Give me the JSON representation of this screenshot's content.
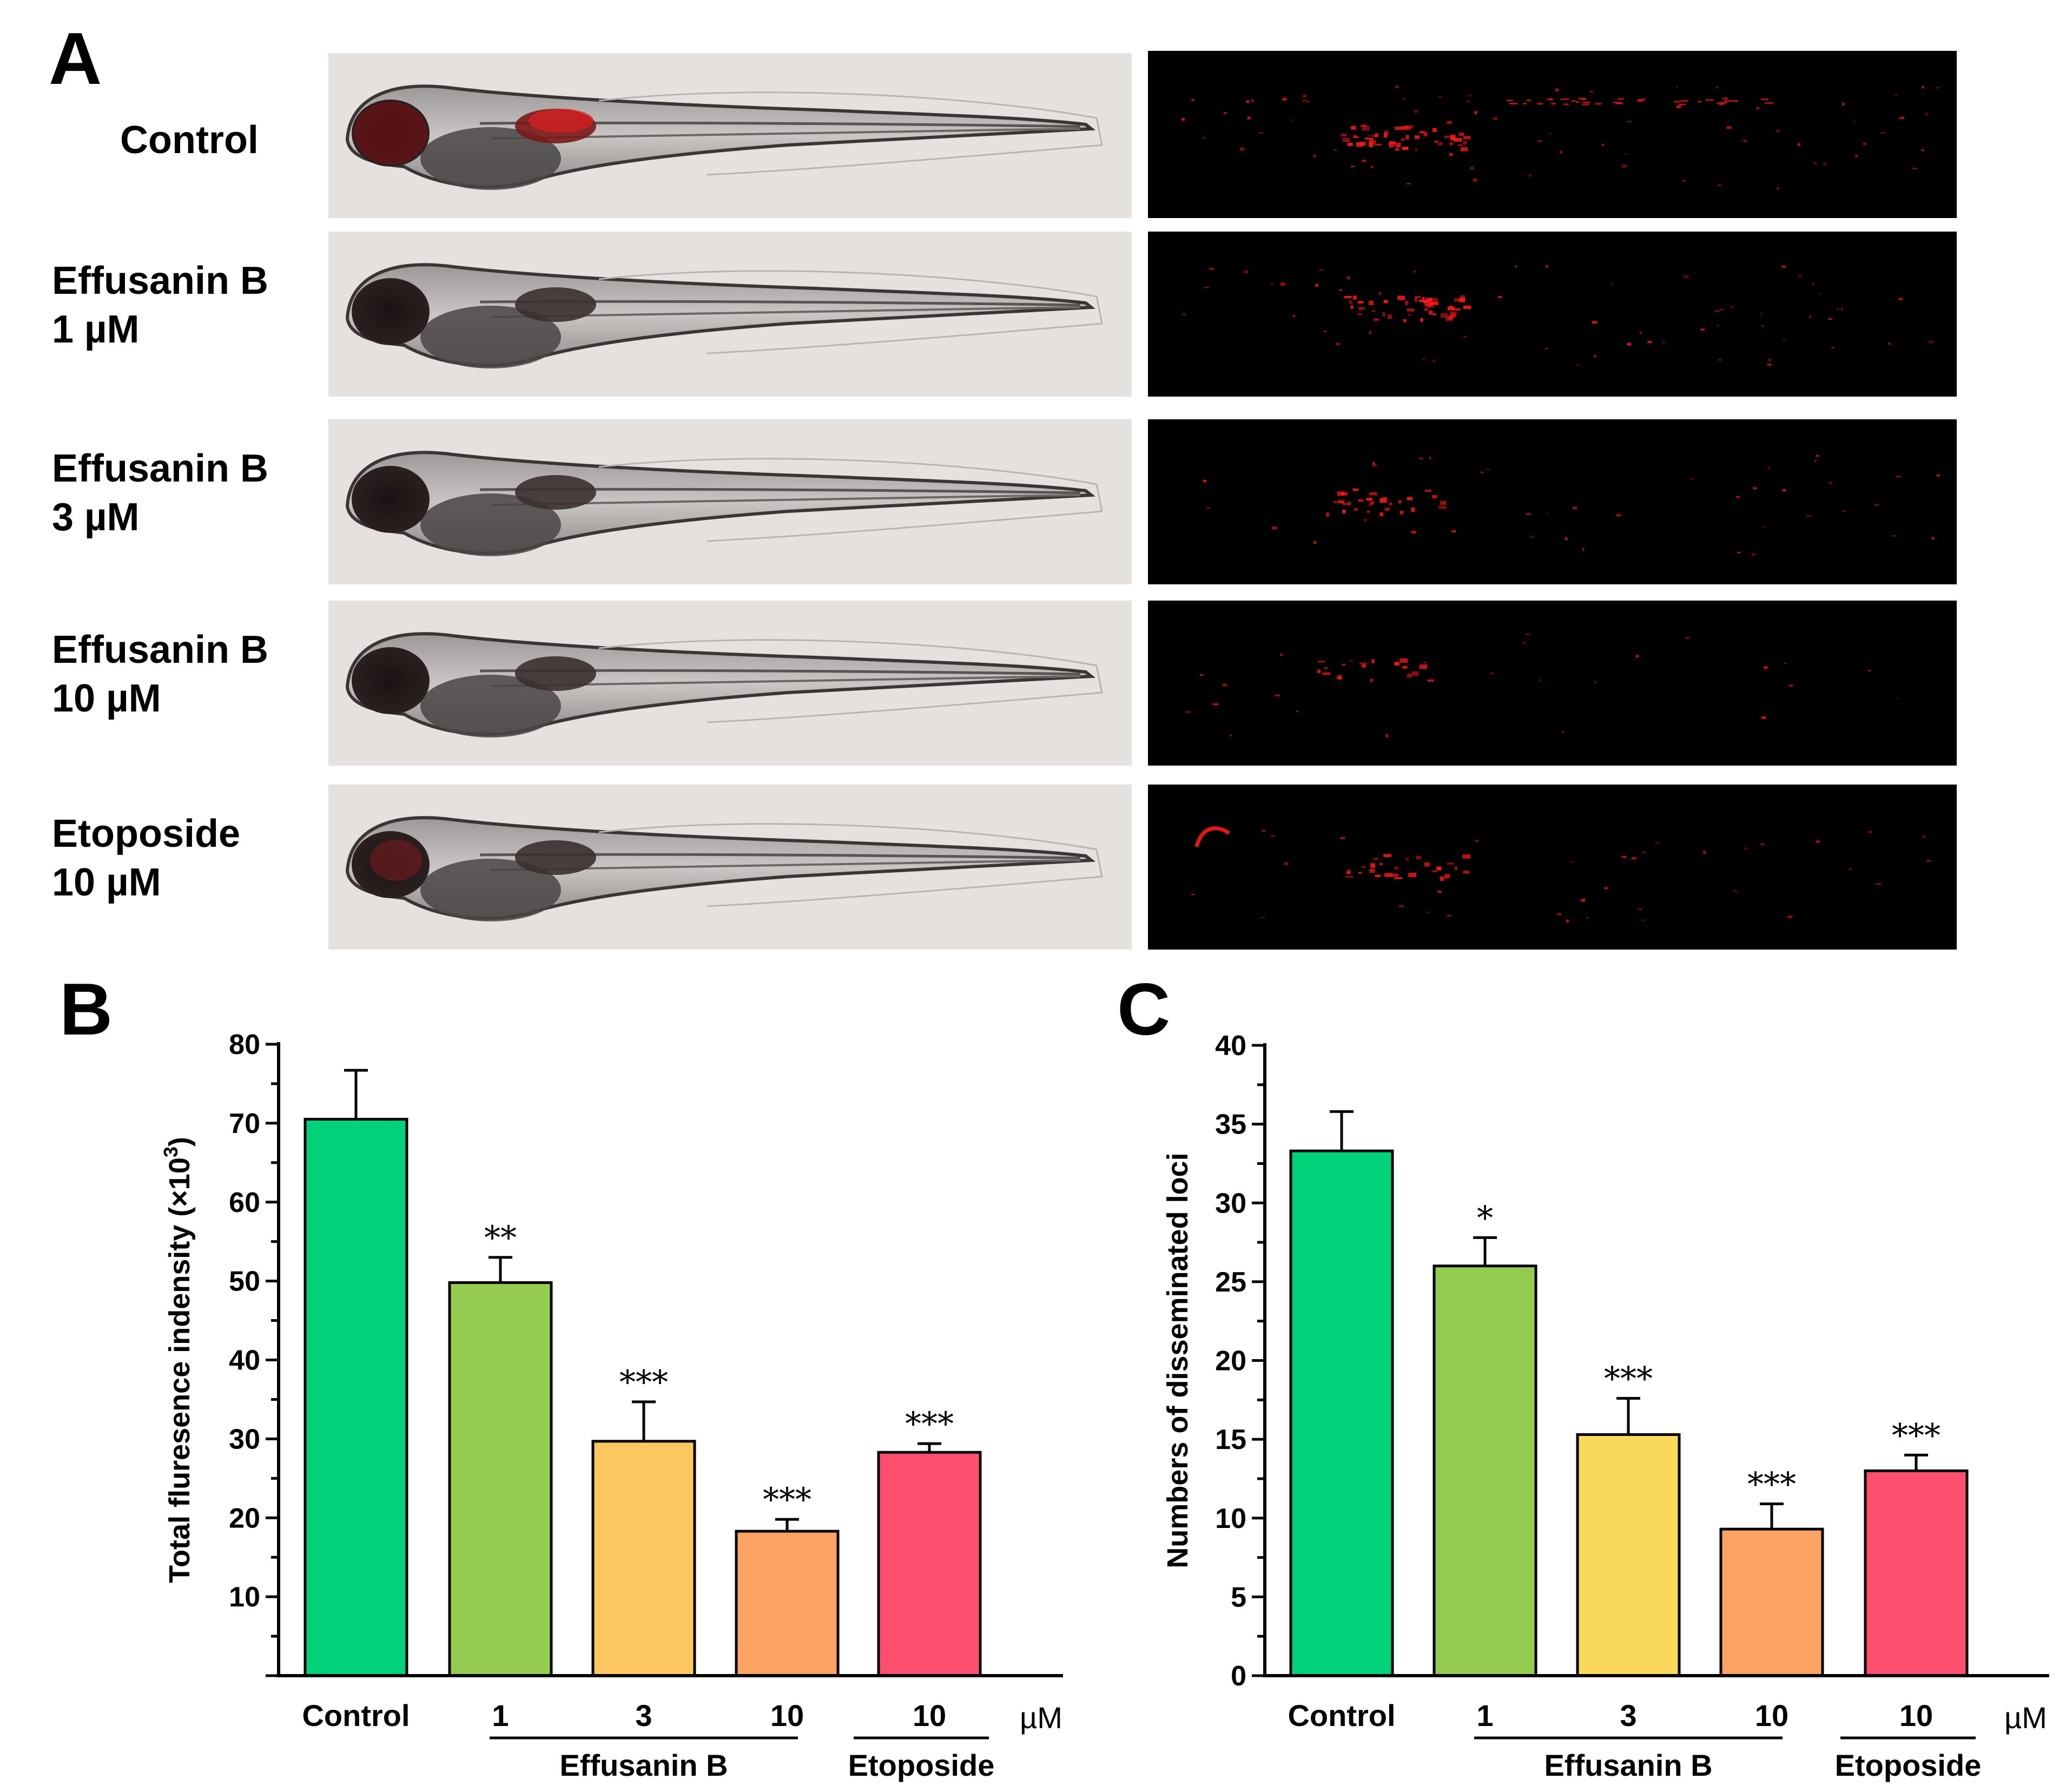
{
  "colors": {
    "bar_control": "#00d27a",
    "bar_1uM": "#94cc4f",
    "bar_3uM": "#fcc75e",
    "bar_3uM_c": "#f9d85c",
    "bar_10uM": "#fca263",
    "bar_etoposide": "#ff4f6e",
    "fluorescence": "#ff1a1a",
    "brightfield_bg": "#e4e1df"
  },
  "panel_a": {
    "letter": "A",
    "rows": [
      {
        "name": "control",
        "line1": "Control",
        "line2": ""
      },
      {
        "name": "effusanin-b-1",
        "line1": "Effusanin B",
        "line2": "1 µM"
      },
      {
        "name": "effusanin-b-3",
        "line1": "Effusanin B",
        "line2": "3 µM"
      },
      {
        "name": "effusanin-b-10",
        "line1": "Effusanin B",
        "line2": "10 µM"
      },
      {
        "name": "etoposide-10",
        "line1": "Etoposide",
        "line2": "10 µM"
      }
    ]
  },
  "chart_data": [
    {
      "panel": "B",
      "type": "bar",
      "ylabel": "Total fluresence indensity (×10",
      "ylabel_sup": "3",
      "ylabel_close": ")",
      "ylim": [
        0,
        80
      ],
      "yticks": [
        10,
        20,
        30,
        40,
        50,
        60,
        70,
        80
      ],
      "categories": [
        "Control",
        "1",
        "3",
        "10",
        "10"
      ],
      "unit": "µM",
      "groups": [
        {
          "label": "Effusanin B",
          "from": 1,
          "to": 3
        },
        {
          "label": "Etoposide",
          "from": 4,
          "to": 4
        }
      ],
      "values": [
        70.5,
        49.8,
        29.7,
        18.3,
        28.3
      ],
      "errors": [
        6.2,
        3.2,
        5.0,
        1.5,
        1.1
      ],
      "significance": [
        "",
        "**",
        "***",
        "***",
        "***"
      ],
      "bar_colors": [
        "#00d27a",
        "#94cc4f",
        "#fcc75e",
        "#fca263",
        "#ff4f6e"
      ]
    },
    {
      "panel": "C",
      "type": "bar",
      "ylabel": "Numbers of disseminated loci",
      "ylim": [
        0,
        40
      ],
      "yticks": [
        0,
        5,
        10,
        15,
        20,
        25,
        30,
        35,
        40
      ],
      "categories": [
        "Control",
        "1",
        "3",
        "10",
        "10"
      ],
      "unit": "µM",
      "groups": [
        {
          "label": "Effusanin B",
          "from": 1,
          "to": 3
        },
        {
          "label": "Etoposide",
          "from": 4,
          "to": 4
        }
      ],
      "values": [
        33.3,
        26.0,
        15.3,
        9.3,
        13.0
      ],
      "errors": [
        2.5,
        1.8,
        2.3,
        1.6,
        1.0
      ],
      "significance": [
        "",
        "*",
        "***",
        "***",
        "***"
      ],
      "bar_colors": [
        "#00d27a",
        "#94cc4f",
        "#f9d85c",
        "#fca263",
        "#ff4f6e"
      ]
    }
  ]
}
